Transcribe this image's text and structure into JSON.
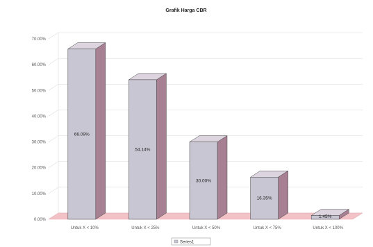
{
  "chart_data": {
    "type": "bar",
    "title": "Grafik Harga CBR",
    "categories": [
      "Untuk X < 10%",
      "Untuk X < 25%",
      "Untuk X < 50%",
      "Untuk X < 75%",
      "Untuk X < 100%"
    ],
    "values": [
      66.09,
      54.14,
      30.0,
      16.35,
      1.45
    ],
    "data_labels": [
      "66.09%",
      "54.14%",
      "30.00%",
      "16.35%",
      "1.45%"
    ],
    "y_ticks": [
      "0.00%",
      "10.00%",
      "20.00%",
      "30.00%",
      "40.00%",
      "50.00%",
      "60.00%",
      "70.00%"
    ],
    "ylim": [
      0,
      70
    ],
    "legend": [
      "Series1"
    ],
    "grid": true,
    "legend_position": "bottom",
    "colors": {
      "bar_front": "#c9c6d3",
      "bar_side": "#a88094",
      "bar_top": "#dcd4de",
      "floor": "#f2c2c6",
      "grid": "#dedede"
    }
  }
}
